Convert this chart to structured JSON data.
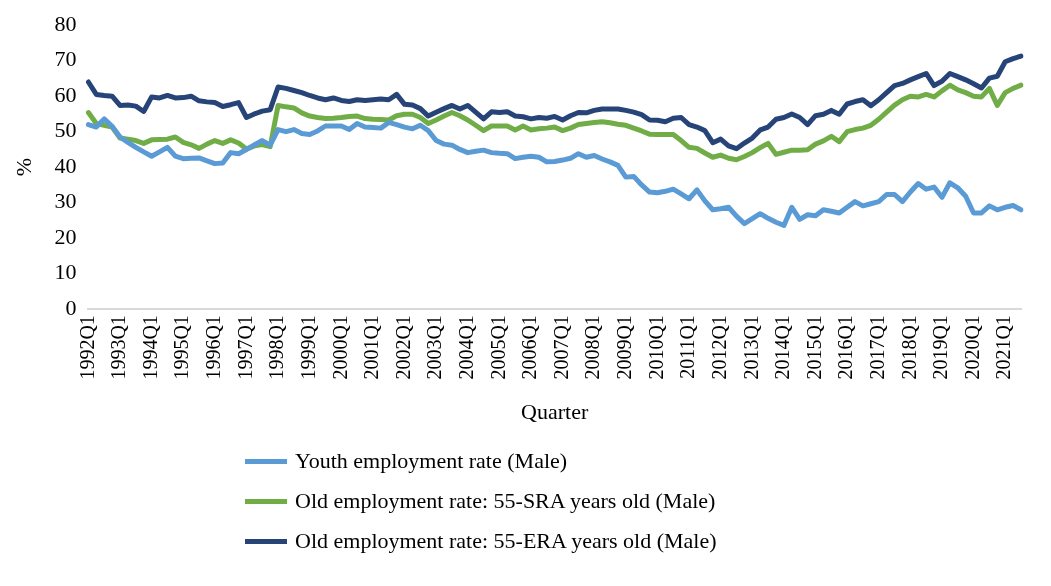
{
  "chart_data": {
    "type": "line",
    "xlabel": "Quarter",
    "ylabel": "%",
    "ylim": [
      0,
      80
    ],
    "yticks": [
      0,
      10,
      20,
      30,
      40,
      50,
      60,
      70,
      80
    ],
    "grid": false,
    "legend": "bottom",
    "marker": "none",
    "line_style": "solid",
    "categories": [
      "1992Q1",
      null,
      null,
      null,
      "1993Q1",
      null,
      null,
      null,
      "1994Q1",
      null,
      null,
      null,
      "1995Q1",
      null,
      null,
      null,
      "1996Q1",
      null,
      null,
      null,
      "1997Q1",
      null,
      null,
      null,
      "1998Q1",
      null,
      null,
      null,
      "1999Q1",
      null,
      null,
      null,
      "2000Q1",
      null,
      null,
      null,
      "2001Q1",
      null,
      null,
      null,
      "2002Q1",
      null,
      null,
      null,
      "2003Q1",
      null,
      null,
      null,
      "2004Q1",
      null,
      null,
      null,
      "2005Q1",
      null,
      null,
      null,
      "2006Q1",
      null,
      null,
      null,
      "2007Q1",
      null,
      null,
      null,
      "2008Q1",
      null,
      null,
      null,
      "2009Q1",
      null,
      null,
      null,
      "2010Q1",
      null,
      null,
      null,
      "2011Q1",
      null,
      null,
      null,
      "2012Q1",
      null,
      null,
      null,
      "2013Q1",
      null,
      null,
      null,
      "2014Q1",
      null,
      null,
      null,
      "2015Q1",
      null,
      null,
      null,
      "2016Q1",
      null,
      null,
      null,
      "2017Q1",
      null,
      null,
      null,
      "2018Q1",
      null,
      null,
      null,
      "2019Q1",
      null,
      null,
      null,
      "2020Q1",
      null,
      null,
      null,
      "2021Q1",
      null,
      null
    ],
    "series": [
      {
        "name": "Youth employment rate (Male)",
        "color": "#5b9bd5",
        "values": [
          52,
          51.3,
          53.6,
          51.5,
          48.5,
          47,
          45.6,
          44.3,
          43.1,
          44.3,
          45.6,
          43.1,
          42.4,
          42.5,
          42.6,
          41.8,
          41,
          41.2,
          44.1,
          43.8,
          45,
          46.3,
          47.5,
          46.2,
          50.6,
          50,
          50.6,
          49.5,
          49.2,
          50.2,
          51.6,
          51.6,
          51.6,
          50.6,
          52.3,
          51.3,
          51.2,
          51,
          52.6,
          52,
          51.3,
          50.8,
          51.8,
          50.3,
          47.5,
          46.5,
          46.2,
          45,
          44.1,
          44.5,
          44.8,
          44.1,
          43.9,
          43.8,
          42.4,
          42.8,
          43.1,
          42.8,
          41.5,
          41.6,
          42,
          42.5,
          43.8,
          42.8,
          43.3,
          42.3,
          41.5,
          40.5,
          37.2,
          37.4,
          35,
          33,
          32.8,
          33.2,
          33.8,
          32.5,
          31.1,
          33.6,
          30.5,
          28,
          28.3,
          28.7,
          26.2,
          24.1,
          25.5,
          26.9,
          25.6,
          24.5,
          23.6,
          28.7,
          25.3,
          26.6,
          26.3,
          28,
          27.6,
          27.1,
          28.7,
          30.3,
          29.1,
          29.7,
          30.3,
          32.3,
          32.3,
          30.3,
          33,
          35.4,
          33.8,
          34.4,
          31.5,
          35.6,
          34.2,
          31.8,
          27.1,
          27.1,
          29.1,
          28,
          28.7,
          29.2,
          28
        ]
      },
      {
        "name": "Old employment rate: 55-SRA years old (Male)",
        "color": "#70ad47",
        "values": [
          55.4,
          52.3,
          51.8,
          51.3,
          48.2,
          47.9,
          47.5,
          46.7,
          47.7,
          47.8,
          47.9,
          48.5,
          47,
          46.3,
          45.3,
          46.5,
          47.5,
          46.7,
          47.7,
          46.8,
          45.1,
          46,
          46.4,
          45.8,
          57.4,
          57,
          56.7,
          55.3,
          54.4,
          54,
          53.7,
          53.8,
          54,
          54.3,
          54.4,
          53.7,
          53.5,
          53.4,
          53.3,
          54.5,
          54.9,
          54.9,
          54,
          52.3,
          53.3,
          54.4,
          55.4,
          54.5,
          53.3,
          51.8,
          50.3,
          51.6,
          51.6,
          51.6,
          50.5,
          51.6,
          50.5,
          50.8,
          51,
          51.3,
          50.3,
          51,
          52,
          52.3,
          52.6,
          52.8,
          52.5,
          52.1,
          51.8,
          51,
          50.2,
          49.3,
          49.2,
          49.2,
          49.2,
          47.5,
          45.6,
          45.3,
          44,
          42.8,
          43.4,
          42.5,
          42.1,
          43,
          44.1,
          45.5,
          46.7,
          43.6,
          44.2,
          44.8,
          44.8,
          44.9,
          46.5,
          47.4,
          48.7,
          47.2,
          50,
          50.6,
          51,
          51.8,
          53.5,
          55.5,
          57.5,
          59,
          60,
          59.8,
          60.5,
          59.8,
          61.5,
          63.1,
          61.8,
          61,
          60,
          59.8,
          62.2,
          57.4,
          61,
          62.2,
          63.1
        ]
      },
      {
        "name": "Old employment rate: 55-ERA years old (Male)",
        "color": "#264478",
        "values": [
          64,
          60.5,
          60.2,
          60,
          57.4,
          57.5,
          57.2,
          55.7,
          59.8,
          59.5,
          60.2,
          59.5,
          59.6,
          60,
          58.7,
          58.4,
          58.2,
          57.1,
          57.6,
          58.2,
          54,
          55,
          55.8,
          56.2,
          62.6,
          62.2,
          61.6,
          61,
          60.2,
          59.5,
          59,
          59.5,
          58.8,
          58.5,
          59,
          58.8,
          59,
          59.2,
          59,
          60.5,
          57.7,
          57.5,
          56.5,
          54.4,
          55.5,
          56.5,
          57.4,
          56.4,
          57.4,
          55.5,
          53.6,
          55.6,
          55.4,
          55.6,
          54.4,
          54.2,
          53.6,
          54,
          53.8,
          54.3,
          53.3,
          54.5,
          55.4,
          55.3,
          56,
          56.4,
          56.4,
          56.4,
          56,
          55.5,
          54.8,
          53.3,
          53.2,
          52.8,
          53.8,
          54,
          52,
          51.3,
          50.3,
          46.9,
          47.9,
          46,
          45.2,
          46.8,
          48.2,
          50.5,
          51.3,
          53.5,
          54,
          55,
          54,
          52,
          54.5,
          54.9,
          56,
          54.9,
          57.8,
          58.5,
          59,
          57.3,
          59,
          61,
          63,
          63.6,
          64.6,
          65.5,
          66.4,
          63,
          64.2,
          66.4,
          65.5,
          64.6,
          63.5,
          62.3,
          65.1,
          65.6,
          69.7,
          70.6,
          71.3
        ]
      }
    ]
  }
}
